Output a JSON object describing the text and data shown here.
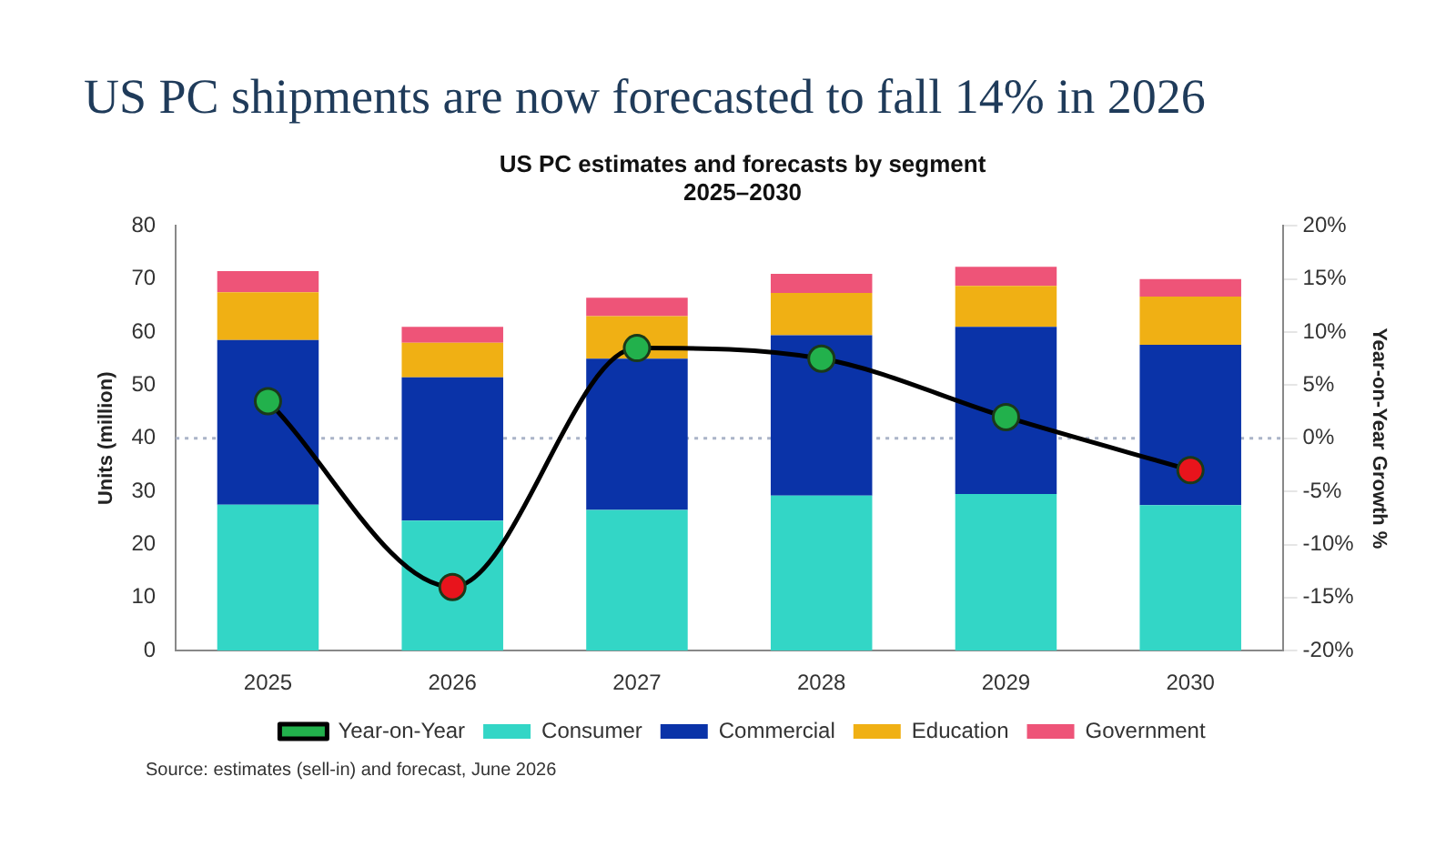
{
  "chart_data": {
    "type": "bar",
    "title": "US PC shipments are now forecasted to fall 14% in 2026",
    "subtitle": "US PC estimates and forecasts by segment\n2025–2030",
    "categories": [
      "2025",
      "2026",
      "2027",
      "2028",
      "2029",
      "2030"
    ],
    "stacked": true,
    "series": [
      {
        "name": "Consumer",
        "color": "#33d6c6",
        "values": [
          27.5,
          24.5,
          26.5,
          29.2,
          29.5,
          27.4
        ]
      },
      {
        "name": "Commercial",
        "color": "#0a33a8",
        "values": [
          31,
          27,
          28.5,
          30.2,
          31.5,
          30.2
        ]
      },
      {
        "name": "Education",
        "color": "#f0b014",
        "values": [
          9,
          6.5,
          8,
          8,
          7.7,
          9.1
        ]
      },
      {
        "name": "Government",
        "color": "#ee5478",
        "values": [
          4,
          3,
          3.5,
          3.6,
          3.6,
          3.3
        ]
      },
      {
        "name": "Year-on-Year",
        "type": "line",
        "axis": "y2",
        "color": "#000000",
        "colors": [
          "#22b14c",
          "#e8141c",
          "#22b14c",
          "#22b14c",
          "#22b14c",
          "#e8141c"
        ],
        "values": [
          3.5,
          -14,
          8.5,
          7.5,
          2,
          -3
        ]
      }
    ],
    "ylabel": "Units (million)",
    "y2label": "Year-on-Year Growth %",
    "ylim": [
      0,
      80
    ],
    "yticks": [
      0,
      10,
      20,
      30,
      40,
      50,
      60,
      70,
      80
    ],
    "y2lim": [
      -20,
      20
    ],
    "y2ticks": [
      {
        "value": -20,
        "label": "-20%"
      },
      {
        "value": -15,
        "label": "-15%"
      },
      {
        "value": -10,
        "label": "-10%"
      },
      {
        "value": -5,
        "label": "-5%"
      },
      {
        "value": 0,
        "label": "0%"
      },
      {
        "value": 5,
        "label": "5%"
      },
      {
        "value": 10,
        "label": "10%"
      },
      {
        "value": 15,
        "label": "15%"
      },
      {
        "value": 20,
        "label": "20%"
      }
    ],
    "ref_lines": [
      {
        "axis": "y2",
        "value": 0,
        "color": "#aab4c8",
        "line_style": "dotted"
      }
    ],
    "marker": "circle",
    "legend": "bottom",
    "annotations": [
      "Source: estimates (sell-in) and forecast, June 2026"
    ]
  }
}
